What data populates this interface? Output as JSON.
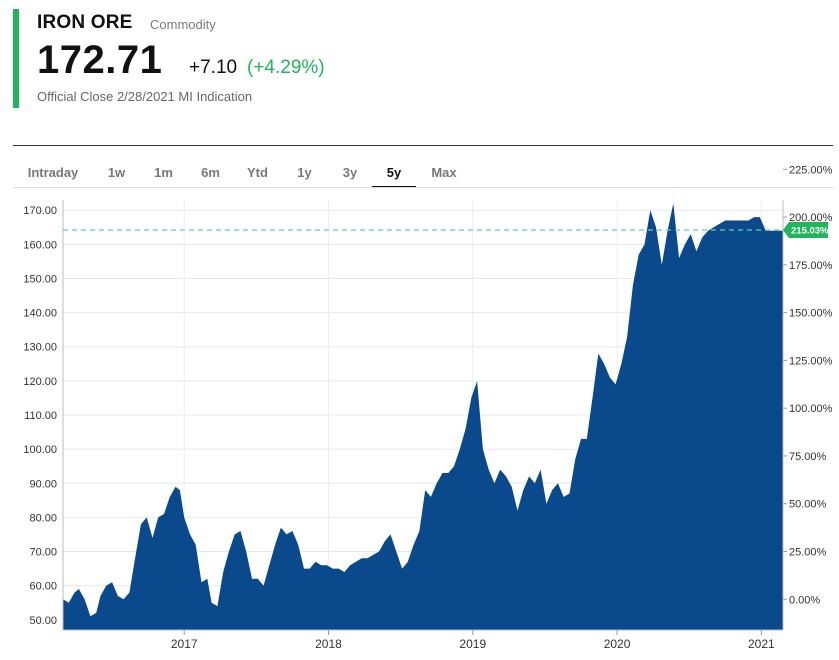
{
  "header": {
    "name": "IRON ORE",
    "type": "Commodity",
    "price": "172.71",
    "change": "+7.10",
    "change_pct": "(+4.29%)",
    "close_note": "Official Close 2/28/2021 MI Indication",
    "accent_color": "#1fb55a"
  },
  "tabs": [
    {
      "label": "Intraday",
      "active": false
    },
    {
      "label": "1w",
      "active": false
    },
    {
      "label": "1m",
      "active": false
    },
    {
      "label": "6m",
      "active": false
    },
    {
      "label": "Ytd",
      "active": false
    },
    {
      "label": "1y",
      "active": false
    },
    {
      "label": "3y",
      "active": false
    },
    {
      "label": "5y",
      "active": true
    },
    {
      "label": "Max",
      "active": false
    }
  ],
  "chart_data": {
    "type": "area",
    "color": "#0a4a8c",
    "x_ticks": [
      "2017",
      "2018",
      "2019",
      "2020",
      "2021"
    ],
    "y_left_ticks": [
      "50.00",
      "60.00",
      "70.00",
      "80.00",
      "90.00",
      "100.00",
      "110.00",
      "120.00",
      "130.00",
      "140.00",
      "150.00",
      "160.00",
      "170.00"
    ],
    "y_right_ticks": [
      "0.00%",
      "25.00%",
      "50.00%",
      "75.00%",
      "100.00%",
      "125.00%",
      "150.00%",
      "175.00%",
      "200.00%",
      "225.00%"
    ],
    "ylim": [
      47,
      173
    ],
    "current_marker": {
      "label": "215.03%",
      "value": 164.2,
      "color": "#1fb55a"
    },
    "x": [
      2016.16,
      2016.2,
      2016.24,
      2016.27,
      2016.31,
      2016.35,
      2016.39,
      2016.42,
      2016.46,
      2016.5,
      2016.54,
      2016.58,
      2016.62,
      2016.66,
      2016.7,
      2016.74,
      2016.78,
      2016.82,
      2016.86,
      2016.9,
      2016.94,
      2016.97,
      2017.0,
      2017.04,
      2017.08,
      2017.12,
      2017.16,
      2017.19,
      2017.23,
      2017.27,
      2017.31,
      2017.35,
      2017.39,
      2017.43,
      2017.47,
      2017.51,
      2017.55,
      2017.59,
      2017.63,
      2017.67,
      2017.71,
      2017.75,
      2017.79,
      2017.83,
      2017.87,
      2017.91,
      2017.95,
      2017.99,
      2018.03,
      2018.07,
      2018.11,
      2018.15,
      2018.19,
      2018.23,
      2018.27,
      2018.31,
      2018.35,
      2018.39,
      2018.43,
      2018.47,
      2018.51,
      2018.55,
      2018.59,
      2018.63,
      2018.67,
      2018.71,
      2018.75,
      2018.79,
      2018.83,
      2018.87,
      2018.91,
      2018.95,
      2018.99,
      2019.03,
      2019.07,
      2019.11,
      2019.15,
      2019.19,
      2019.23,
      2019.27,
      2019.31,
      2019.35,
      2019.39,
      2019.43,
      2019.47,
      2019.51,
      2019.55,
      2019.59,
      2019.63,
      2019.67,
      2019.71,
      2019.75,
      2019.79,
      2019.83,
      2019.87,
      2019.91,
      2019.95,
      2019.99,
      2020.03,
      2020.07,
      2020.11,
      2020.15,
      2020.19,
      2020.23,
      2020.27,
      2020.31,
      2020.35,
      2020.39,
      2020.43,
      2020.47,
      2020.51,
      2020.55,
      2020.59,
      2020.63,
      2020.67,
      2020.71,
      2020.75,
      2020.79,
      2020.83,
      2020.87,
      2020.91,
      2020.95,
      2020.99,
      2021.03,
      2021.07,
      2021.11,
      2021.15
    ],
    "y": [
      56,
      55,
      58,
      59,
      56,
      51,
      52,
      57,
      60,
      61,
      57,
      56,
      58,
      68,
      78,
      80,
      74,
      80,
      81,
      86,
      89,
      88,
      80,
      75,
      72,
      61,
      62,
      55,
      54,
      64,
      70,
      75,
      76,
      70,
      62,
      62,
      60,
      66,
      72,
      77,
      75,
      76,
      72,
      65,
      65,
      67,
      66,
      66,
      65,
      65,
      64,
      66,
      67,
      68,
      68,
      69,
      70,
      73,
      75,
      70,
      65,
      67,
      72,
      76,
      88,
      86,
      90,
      93,
      93,
      95,
      100,
      106,
      115,
      120,
      100,
      94,
      90,
      94,
      92,
      89,
      82,
      88,
      92,
      90,
      94,
      84,
      88,
      90,
      86,
      87,
      97,
      103,
      103,
      115,
      128,
      125,
      121,
      119,
      125,
      133,
      148,
      157,
      160,
      170,
      165,
      154,
      164,
      172,
      156,
      160,
      163,
      158,
      162,
      164,
      165,
      166,
      167,
      167,
      167,
      167,
      167,
      168,
      168,
      164,
      164,
      164,
      164
    ]
  }
}
